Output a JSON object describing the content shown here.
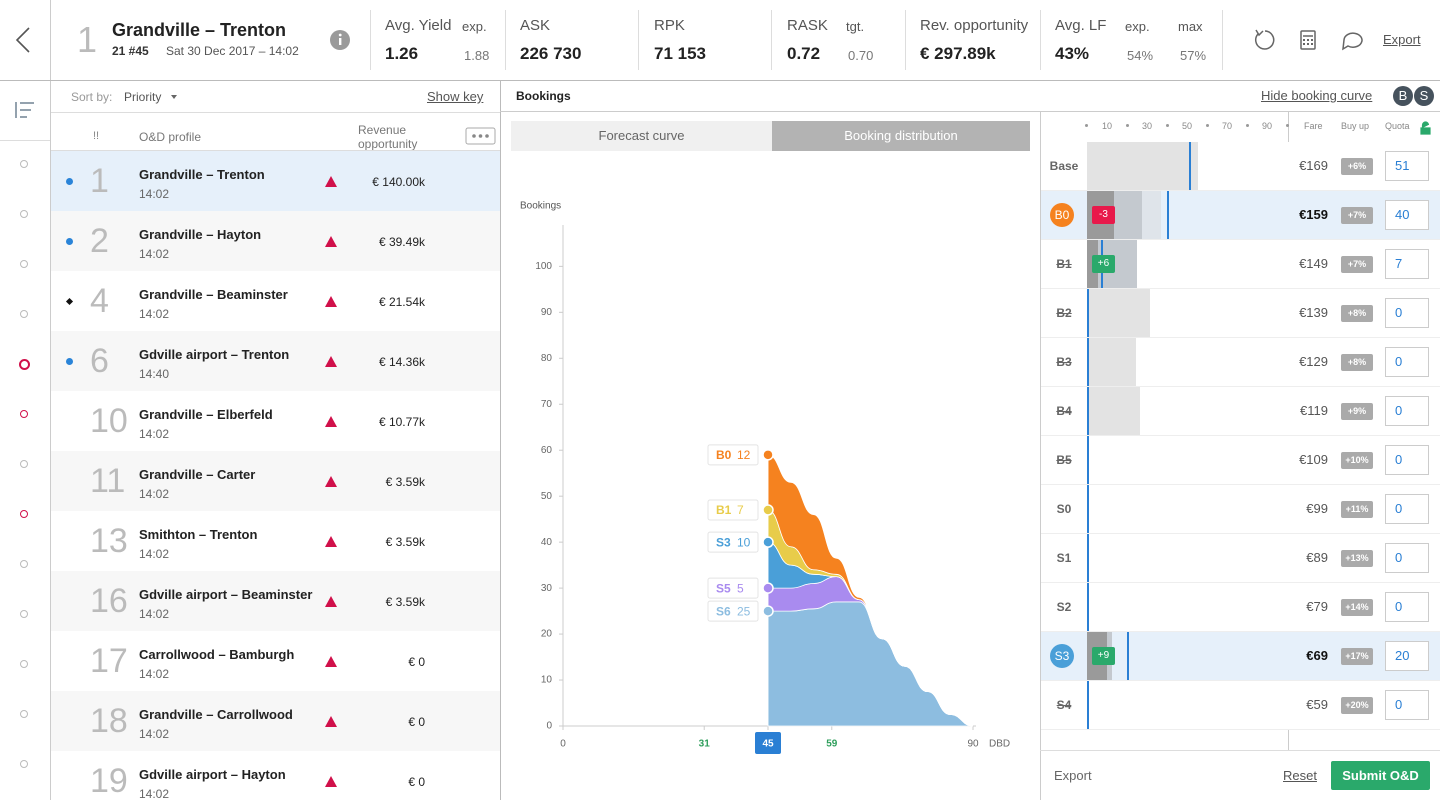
{
  "header": {
    "rank": "1",
    "title": "Grandville – Trenton",
    "flight": "21 #45",
    "date": "Sat 30 Dec 2017 – 14:02",
    "metrics": [
      {
        "label": "Avg. Yield",
        "value": "1.26",
        "extras": [
          {
            "label": "exp.",
            "value": "1.88"
          }
        ]
      },
      {
        "label": "ASK",
        "value": "226 730"
      },
      {
        "label": "RPK",
        "value": "71 153"
      },
      {
        "label": "RASK",
        "value": "0.72",
        "extras": [
          {
            "label": "tgt.",
            "value": "0.70"
          }
        ]
      },
      {
        "label": "Rev. opportunity",
        "value": "€ 297.89k"
      },
      {
        "label": "Avg. LF",
        "value": "43%",
        "extras": [
          {
            "label": "exp.",
            "value": "54%"
          },
          {
            "label": "max",
            "value": "57%"
          }
        ]
      }
    ],
    "export": "Export"
  },
  "list": {
    "sort_label": "Sort by:",
    "sort_value": "Priority",
    "show_key": "Show key",
    "columns": [
      "!!",
      "O&D profile",
      "Revenue opportunity"
    ],
    "rows": [
      {
        "rank": "1",
        "name": "Grandville – Trenton",
        "time": "14:02",
        "revenue": "€ 140.00k",
        "marker": "dot",
        "selected": true
      },
      {
        "rank": "2",
        "name": "Grandville – Hayton",
        "time": "14:02",
        "revenue": "€ 39.49k",
        "marker": "dot"
      },
      {
        "rank": "4",
        "name": "Grandville – Beaminster",
        "time": "14:02",
        "revenue": "€ 21.54k",
        "marker": "diamond"
      },
      {
        "rank": "6",
        "name": "Gdville airport – Trenton",
        "time": "14:40",
        "revenue": "€ 14.36k",
        "marker": "dot"
      },
      {
        "rank": "10",
        "name": "Grandville – Elberfeld",
        "time": "14:02",
        "revenue": "€ 10.77k"
      },
      {
        "rank": "11",
        "name": "Grandville – Carter",
        "time": "14:02",
        "revenue": "€ 3.59k"
      },
      {
        "rank": "13",
        "name": "Smithton – Trenton",
        "time": "14:02",
        "revenue": "€ 3.59k"
      },
      {
        "rank": "16",
        "name": "Gdville airport – Beaminster",
        "time": "14:02",
        "revenue": "€ 3.59k"
      },
      {
        "rank": "17",
        "name": "Carrollwood – Bamburgh",
        "time": "14:02",
        "revenue": "€ 0"
      },
      {
        "rank": "18",
        "name": "Grandville – Carrollwood",
        "time": "14:02",
        "revenue": "€ 0"
      },
      {
        "rank": "19",
        "name": "Gdville airport – Hayton",
        "time": "14:02",
        "revenue": "€ 0"
      }
    ]
  },
  "bookings": {
    "title": "Bookings",
    "hide": "Hide booking curve",
    "toggles": [
      "B",
      "S"
    ],
    "tabs": [
      "Forecast curve",
      "Booking distribution"
    ],
    "active_tab": 1
  },
  "chart_data": {
    "type": "area",
    "stacked": true,
    "y_label": "Bookings",
    "x_label": "DBD",
    "x": [
      45,
      50,
      55,
      60,
      65,
      70,
      75,
      80,
      85,
      90
    ],
    "series": [
      {
        "name": "S6",
        "color": "#8dbde0",
        "values": [
          25,
          25,
          25.5,
          27,
          27,
          19,
          13,
          7.5,
          2.5,
          0
        ]
      },
      {
        "name": "S5",
        "color": "#a98bef",
        "values": [
          5,
          5,
          5.5,
          5.5,
          0.5,
          0,
          0,
          0,
          0,
          0
        ]
      },
      {
        "name": "S3",
        "color": "#4a9fd8",
        "values": [
          10,
          5,
          2,
          0,
          0,
          0,
          0,
          0,
          0,
          0
        ]
      },
      {
        "name": "B1",
        "color": "#e8cc4a",
        "values": [
          7,
          4,
          1,
          0.5,
          0,
          0,
          0,
          0,
          0,
          0
        ]
      },
      {
        "name": "B0",
        "color": "#f5821f",
        "values": [
          12,
          14,
          12,
          3.5,
          0.5,
          0,
          0,
          0,
          0,
          0
        ]
      }
    ],
    "xlim": [
      0,
      90
    ],
    "ylim": [
      0,
      109
    ],
    "xticks": [
      0,
      31,
      45,
      59,
      90
    ],
    "xtick_styles": [
      "plain",
      "green",
      "current",
      "green",
      "plain"
    ],
    "yticks": [
      0,
      10,
      20,
      30,
      40,
      50,
      60,
      70,
      80,
      90,
      100
    ]
  },
  "classes": {
    "scale_ticks": [
      10,
      30,
      50,
      70,
      90
    ],
    "columns": [
      "Fare",
      "Buy up",
      "Quota"
    ],
    "rows": [
      {
        "class": "Base",
        "fare": "€169",
        "buy_up": "+6%",
        "quota": 51,
        "bars": [
          55.5
        ]
      },
      {
        "class": "B0",
        "fare": "€159",
        "buy_up": "+7%",
        "quota": 40,
        "badge": "-3",
        "badge_color": "#e8194a",
        "circle": "#f5821f",
        "highlight": true,
        "bars": [
          13.5,
          14,
          9.5
        ]
      },
      {
        "class": "B1",
        "fare": "€149",
        "buy_up": "+7%",
        "quota": 7,
        "struck": true,
        "badge": "+6",
        "badge_color": "#2aa96b",
        "bars": [
          5.5,
          19.5
        ]
      },
      {
        "class": "B2",
        "fare": "€139",
        "buy_up": "+8%",
        "quota": 0,
        "struck": true,
        "bars": [
          31.5
        ]
      },
      {
        "class": "B3",
        "fare": "€129",
        "buy_up": "+8%",
        "quota": 0,
        "struck": true,
        "bars": [
          24.5
        ]
      },
      {
        "class": "B4",
        "fare": "€119",
        "buy_up": "+9%",
        "quota": 0,
        "struck": true,
        "bars": [
          26.5
        ]
      },
      {
        "class": "B5",
        "fare": "€109",
        "buy_up": "+10%",
        "quota": 0,
        "struck": true,
        "bars": []
      },
      {
        "class": "S0",
        "fare": "€99",
        "buy_up": "+11%",
        "quota": 0,
        "bars": []
      },
      {
        "class": "S1",
        "fare": "€89",
        "buy_up": "+13%",
        "quota": 0,
        "bars": []
      },
      {
        "class": "S2",
        "fare": "€79",
        "buy_up": "+14%",
        "quota": 0,
        "bars": []
      },
      {
        "class": "S3",
        "fare": "€69",
        "buy_up": "+17%",
        "quota": 20,
        "badge": "+9",
        "badge_color": "#2aa96b",
        "circle": "#4a9fd8",
        "highlight": true,
        "bars": [
          10,
          2.5
        ]
      },
      {
        "class": "S4",
        "fare": "€59",
        "buy_up": "+20%",
        "quota": 0,
        "struck": true,
        "bars": []
      }
    ],
    "export": "Export",
    "reset": "Reset",
    "submit": "Submit O&D"
  }
}
